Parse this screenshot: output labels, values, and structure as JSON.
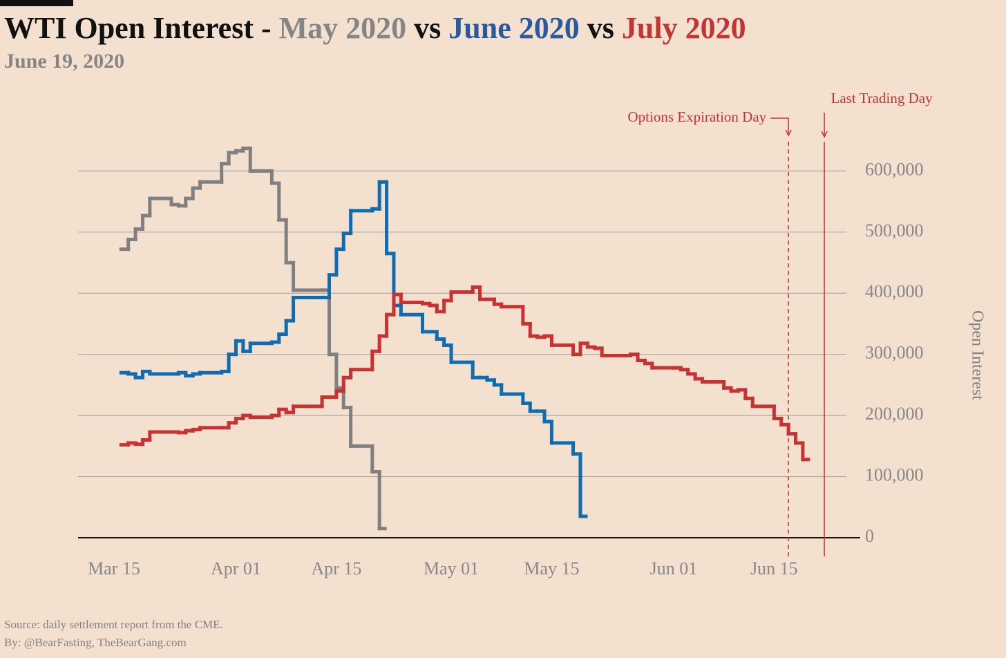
{
  "chart_data": {
    "type": "step",
    "title": "WTI Open Interest -",
    "title_separator": "vs",
    "subtitle": "June 19, 2020",
    "y_label": "Open Interest",
    "source": "Source: daily settlement report from the CME.",
    "byline": "By: @BearFasting, TheBearGang.com",
    "xlim": [
      "Mar 10",
      "Jun 27"
    ],
    "xticks": [
      "Mar 15",
      "Apr 01",
      "Apr 15",
      "May 01",
      "May 15",
      "Jun 01",
      "Jun 15"
    ],
    "ylim": [
      0,
      640000
    ],
    "yticks": [
      0,
      {
        "value": 100000,
        "label": "100,000"
      },
      {
        "value": 200000,
        "label": "200,000"
      },
      {
        "value": 300000,
        "label": "300,000"
      },
      {
        "value": 400000,
        "label": "400,000"
      },
      {
        "value": 500000,
        "label": "500,000"
      },
      {
        "value": 600000,
        "label": "600,000"
      }
    ],
    "grid": true,
    "annotations": [
      {
        "text": "Options Expiration Day",
        "x": "Jun 17",
        "style": "dashed"
      },
      {
        "text": "Last Trading Day",
        "x": "Jun 22",
        "style": "solid"
      }
    ],
    "series": [
      {
        "name": "May 2020",
        "color": "#808080",
        "title_color": "#858585",
        "x": [
          "Mar 16",
          "Mar 17",
          "Mar 18",
          "Mar 19",
          "Mar 20",
          "Mar 23",
          "Mar 24",
          "Mar 25",
          "Mar 26",
          "Mar 27",
          "Mar 30",
          "Mar 31",
          "Apr 01",
          "Apr 02",
          "Apr 03",
          "Apr 06",
          "Apr 07",
          "Apr 08",
          "Apr 09",
          "Apr 13",
          "Apr 14",
          "Apr 15",
          "Apr 16",
          "Apr 17",
          "Apr 20",
          "Apr 21"
        ],
        "values": [
          472000,
          488000,
          505000,
          527000,
          555000,
          545000,
          543000,
          555000,
          572000,
          582000,
          612000,
          630000,
          633000,
          637000,
          600000,
          580000,
          520000,
          450000,
          405000,
          405000,
          300000,
          245000,
          213000,
          150000,
          108000,
          15000
        ]
      },
      {
        "name": "June 2020",
        "color": "#0f6cb0",
        "title_color": "#2a5a9e",
        "x": [
          "Mar 16",
          "Mar 17",
          "Mar 18",
          "Mar 19",
          "Mar 20",
          "Mar 23",
          "Mar 24",
          "Mar 25",
          "Mar 26",
          "Mar 27",
          "Mar 30",
          "Mar 31",
          "Apr 01",
          "Apr 02",
          "Apr 03",
          "Apr 06",
          "Apr 07",
          "Apr 08",
          "Apr 09",
          "Apr 13",
          "Apr 14",
          "Apr 15",
          "Apr 16",
          "Apr 17",
          "Apr 20",
          "Apr 21",
          "Apr 22",
          "Apr 23",
          "Apr 24",
          "Apr 27",
          "Apr 28",
          "Apr 29",
          "Apr 30",
          "May 01",
          "May 04",
          "May 05",
          "May 06",
          "May 07",
          "May 08",
          "May 11",
          "May 12",
          "May 13",
          "May 14",
          "May 15",
          "May 18",
          "May 19"
        ],
        "values": [
          270000,
          268000,
          262000,
          272000,
          268000,
          268000,
          270000,
          265000,
          268000,
          270000,
          272000,
          300000,
          322000,
          305000,
          318000,
          320000,
          333000,
          355000,
          393000,
          393000,
          430000,
          472000,
          498000,
          535000,
          538000,
          582000,
          465000,
          380000,
          365000,
          337000,
          337000,
          325000,
          315000,
          287000,
          262000,
          262000,
          258000,
          250000,
          235000,
          220000,
          207000,
          207000,
          190000,
          155000,
          137000,
          35000
        ]
      },
      {
        "name": "July 2020",
        "color": "#c83232",
        "title_color": "#c43432",
        "x": [
          "Mar 16",
          "Mar 17",
          "Mar 18",
          "Mar 19",
          "Mar 20",
          "Mar 23",
          "Mar 24",
          "Mar 25",
          "Mar 26",
          "Mar 27",
          "Mar 30",
          "Mar 31",
          "Apr 01",
          "Apr 02",
          "Apr 03",
          "Apr 06",
          "Apr 07",
          "Apr 08",
          "Apr 09",
          "Apr 13",
          "Apr 14",
          "Apr 15",
          "Apr 16",
          "Apr 17",
          "Apr 20",
          "Apr 21",
          "Apr 22",
          "Apr 23",
          "Apr 24",
          "Apr 27",
          "Apr 28",
          "Apr 29",
          "Apr 30",
          "May 01",
          "May 04",
          "May 05",
          "May 06",
          "May 07",
          "May 08",
          "May 11",
          "May 12",
          "May 13",
          "May 14",
          "May 15",
          "May 18",
          "May 19",
          "May 20",
          "May 21",
          "May 22",
          "May 26",
          "May 27",
          "May 28",
          "May 29",
          "Jun 01",
          "Jun 02",
          "Jun 03",
          "Jun 04",
          "Jun 05",
          "Jun 08",
          "Jun 09",
          "Jun 10",
          "Jun 11",
          "Jun 12",
          "Jun 15",
          "Jun 16",
          "Jun 17",
          "Jun 18",
          "Jun 19"
        ],
        "values": [
          152000,
          155000,
          153000,
          160000,
          173000,
          173000,
          172000,
          175000,
          177000,
          180000,
          180000,
          188000,
          195000,
          200000,
          197000,
          200000,
          210000,
          205000,
          215000,
          230000,
          230000,
          240000,
          262000,
          275000,
          305000,
          330000,
          365000,
          398000,
          385000,
          383000,
          380000,
          370000,
          388000,
          402000,
          410000,
          390000,
          390000,
          382000,
          378000,
          350000,
          330000,
          328000,
          330000,
          315000,
          300000,
          318000,
          312000,
          310000,
          298000,
          300000,
          290000,
          285000,
          278000,
          278000,
          275000,
          268000,
          260000,
          255000,
          245000,
          240000,
          242000,
          228000,
          215000,
          195000,
          185000,
          170000,
          155000,
          128000
        ]
      }
    ]
  }
}
